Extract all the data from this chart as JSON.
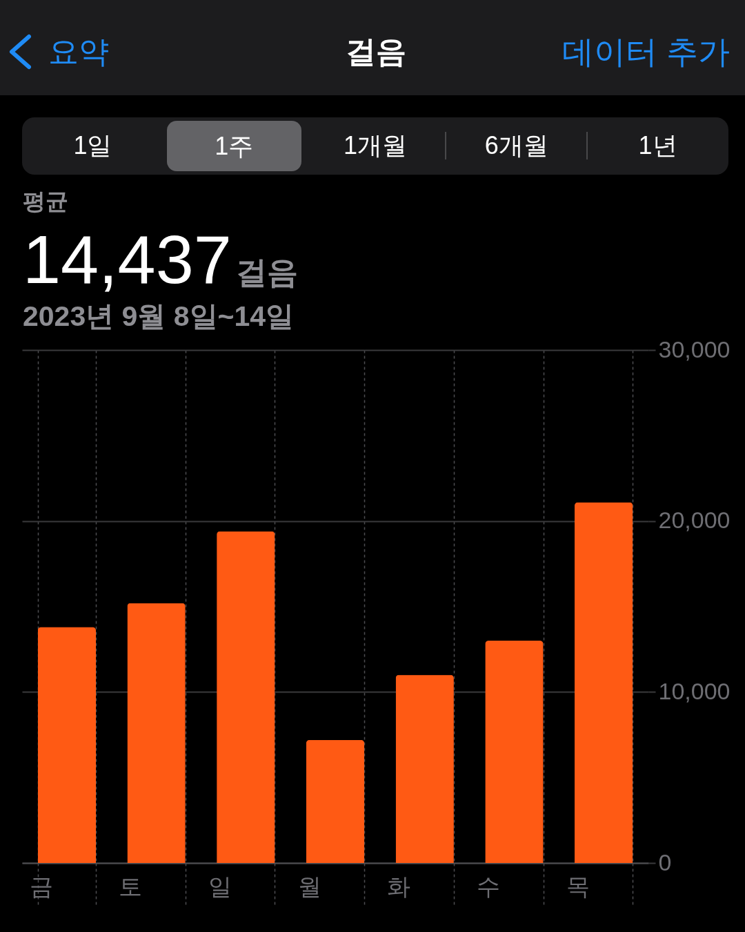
{
  "chart_data": {
    "type": "bar",
    "title": "걸음",
    "subtitle": "2023년 9월 8일~14일",
    "annotations": [
      "요약",
      "데이터 추가",
      "1일",
      "1주",
      "1개월",
      "6개월",
      "1년",
      "평균",
      "14,437",
      "걸음"
    ],
    "categories": [
      "금",
      "토",
      "일",
      "월",
      "화",
      "수",
      "목"
    ],
    "values": [
      13800,
      15200,
      19400,
      7200,
      11000,
      13000,
      21100
    ],
    "color": "#ff5a14",
    "ylim": [
      0,
      30000
    ],
    "yticks": [
      0,
      {
        "value": 10000,
        "label": "10,000"
      },
      {
        "value": 20000,
        "label": "20,000"
      },
      {
        "value": 30000,
        "label": "30,000"
      }
    ],
    "grid": true
  }
}
